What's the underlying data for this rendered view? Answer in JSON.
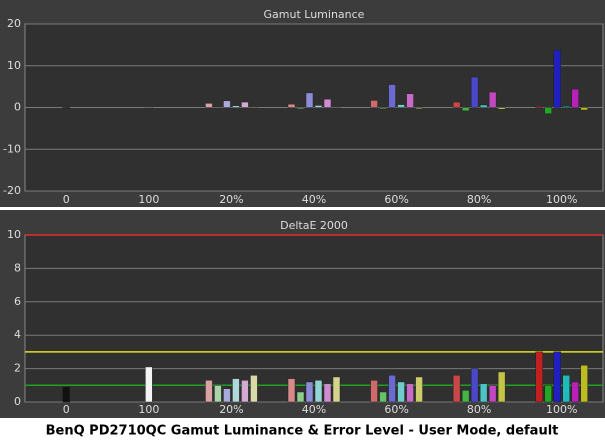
{
  "chart_data": [
    {
      "type": "bar",
      "title": "Gamut Luminance",
      "categories": [
        "0",
        "100",
        "20%",
        "40%",
        "60%",
        "80%",
        "100%"
      ],
      "series": [
        {
          "colors": [
            null,
            null,
            "#d9a3a3",
            "#d78a8a",
            "#cf6a6a",
            "#c84848",
            "#c02020"
          ],
          "values": [
            null,
            null,
            1.0,
            0.8,
            1.7,
            1.3,
            0.3
          ]
        },
        {
          "colors": [
            null,
            null,
            "#a9d4a9",
            "#8ccc8c",
            "#66c066",
            "#44b444",
            "#20a820"
          ],
          "values": [
            null,
            null,
            0.2,
            -0.3,
            -0.3,
            -0.8,
            -1.5
          ]
        },
        {
          "colors": [
            null,
            null,
            "#a9a9dc",
            "#8c8cd8",
            "#6a6ad0",
            "#4848c8",
            "#2020c0"
          ],
          "values": [
            null,
            null,
            1.6,
            3.5,
            5.5,
            7.3,
            13.7
          ]
        },
        {
          "colors": [
            null,
            null,
            "#b0d8d8",
            "#94d4d4",
            "#70cccc",
            "#4cc4c4",
            "#20bcbc"
          ],
          "values": [
            null,
            null,
            0.4,
            0.5,
            0.7,
            0.6,
            0.3
          ]
        },
        {
          "colors": [
            null,
            null,
            "#d4a9d4",
            "#d08cd0",
            "#c86ac8",
            "#c048c0",
            "#b820b8"
          ],
          "values": [
            null,
            null,
            1.3,
            2.0,
            3.3,
            3.7,
            4.4
          ]
        },
        {
          "colors": [
            null,
            null,
            "#d8d8a9",
            "#d4d48c",
            "#cccc6a",
            "#c4c448",
            "#bcbc20"
          ],
          "values": [
            null,
            null,
            0.2,
            0.0,
            -0.3,
            -0.4,
            -0.6
          ]
        },
        {
          "colors": [
            "#111111",
            "#f4f4f4",
            null,
            null,
            null,
            null,
            null
          ],
          "values": [
            0.0,
            0.0,
            null,
            null,
            null,
            null,
            null
          ]
        }
      ],
      "ylim": [
        -20,
        20
      ],
      "yticks": [
        -20,
        -10,
        0,
        10,
        20
      ],
      "grid": true
    },
    {
      "type": "bar",
      "title": "DeltaE 2000",
      "categories": [
        "0",
        "100",
        "20%",
        "40%",
        "60%",
        "80%",
        "100%"
      ],
      "series": [
        {
          "colors": [
            null,
            null,
            "#d9a3a3",
            "#d78a8a",
            "#cf6a6a",
            "#c84848",
            "#c02020"
          ],
          "values": [
            null,
            null,
            1.3,
            1.4,
            1.3,
            1.6,
            3.0
          ]
        },
        {
          "colors": [
            null,
            null,
            "#a9d4a9",
            "#8ccc8c",
            "#66c066",
            "#44b444",
            "#20a820"
          ],
          "values": [
            null,
            null,
            1.0,
            0.6,
            0.6,
            0.7,
            1.0
          ]
        },
        {
          "colors": [
            null,
            null,
            "#a9a9dc",
            "#8c8cd8",
            "#6a6ad0",
            "#4848c8",
            "#2020c0"
          ],
          "values": [
            null,
            null,
            0.8,
            1.2,
            1.6,
            2.0,
            3.0
          ]
        },
        {
          "colors": [
            null,
            null,
            "#b0d8d8",
            "#94d4d4",
            "#70cccc",
            "#4cc4c4",
            "#20bcbc"
          ],
          "values": [
            null,
            null,
            1.4,
            1.3,
            1.2,
            1.1,
            1.6
          ]
        },
        {
          "colors": [
            null,
            null,
            "#d4a9d4",
            "#d08cd0",
            "#c86ac8",
            "#c048c0",
            "#b820b8"
          ],
          "values": [
            null,
            null,
            1.3,
            1.1,
            1.1,
            1.0,
            1.2
          ]
        },
        {
          "colors": [
            null,
            null,
            "#d8d8a9",
            "#d4d48c",
            "#cccc6a",
            "#c4c448",
            "#bcbc20"
          ],
          "values": [
            null,
            null,
            1.6,
            1.5,
            1.5,
            1.8,
            2.2
          ]
        },
        {
          "colors": [
            "#111111",
            "#f4f4f4",
            null,
            null,
            null,
            null,
            null
          ],
          "values": [
            0.9,
            2.1,
            null,
            null,
            null,
            null,
            null
          ]
        }
      ],
      "ylim": [
        0,
        10
      ],
      "yticks": [
        0,
        2,
        4,
        6,
        8,
        10
      ],
      "grid": true,
      "reference_lines": [
        {
          "value": 10,
          "color": "#e03030"
        },
        {
          "value": 3,
          "color": "#e0e020"
        },
        {
          "value": 1,
          "color": "#20a020"
        }
      ]
    }
  ],
  "caption": "BenQ PD2710QC Gamut Luminance & Error Level - User Mode, default"
}
